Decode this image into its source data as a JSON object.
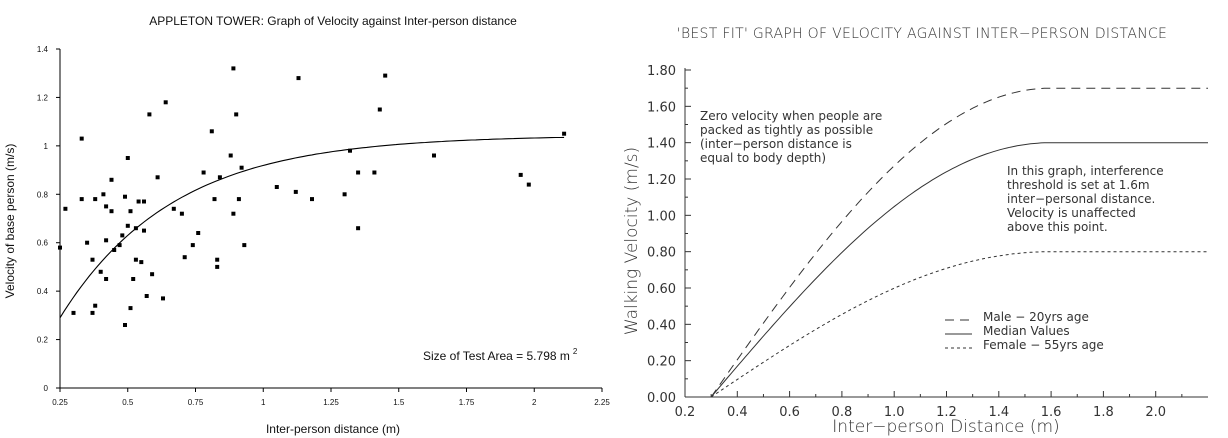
{
  "chart_data": [
    {
      "type": "scatter",
      "title": "APPLETON TOWER: Graph of Velocity against Inter-person distance",
      "xlabel": "Inter-person distance (m)",
      "ylabel": "Velocity of base person (m/s)",
      "xlim": [
        0.25,
        2.25
      ],
      "ylim": [
        0,
        1.4
      ],
      "xticks": [
        "0.25",
        "0.5",
        "0.75",
        "1",
        "1.25",
        "1.5",
        "1.75",
        "2",
        "2.25"
      ],
      "yticks": [
        "0",
        "0.2",
        "0.4",
        "0.6",
        "0.8",
        "1",
        "1.2",
        "1.4"
      ],
      "annotation": "Size of Test Area = 5.798 m",
      "annotation_sup": "2",
      "grid": false,
      "points": [
        [
          0.25,
          0.58
        ],
        [
          0.27,
          0.74
        ],
        [
          0.3,
          0.31
        ],
        [
          0.33,
          0.78
        ],
        [
          0.33,
          1.03
        ],
        [
          0.35,
          0.6
        ],
        [
          0.37,
          0.53
        ],
        [
          0.37,
          0.31
        ],
        [
          0.38,
          0.34
        ],
        [
          0.38,
          0.78
        ],
        [
          0.4,
          0.48
        ],
        [
          0.41,
          0.8
        ],
        [
          0.42,
          0.75
        ],
        [
          0.42,
          0.61
        ],
        [
          0.42,
          0.45
        ],
        [
          0.44,
          0.86
        ],
        [
          0.44,
          0.73
        ],
        [
          0.45,
          0.57
        ],
        [
          0.47,
          0.59
        ],
        [
          0.48,
          0.63
        ],
        [
          0.49,
          0.26
        ],
        [
          0.49,
          0.79
        ],
        [
          0.5,
          0.95
        ],
        [
          0.5,
          0.67
        ],
        [
          0.51,
          0.73
        ],
        [
          0.51,
          0.33
        ],
        [
          0.52,
          0.45
        ],
        [
          0.53,
          0.53
        ],
        [
          0.53,
          0.66
        ],
        [
          0.54,
          0.77
        ],
        [
          0.55,
          0.52
        ],
        [
          0.56,
          0.65
        ],
        [
          0.56,
          0.77
        ],
        [
          0.57,
          0.38
        ],
        [
          0.58,
          1.13
        ],
        [
          0.59,
          0.47
        ],
        [
          0.61,
          0.87
        ],
        [
          0.63,
          0.37
        ],
        [
          0.64,
          1.18
        ],
        [
          0.67,
          0.74
        ],
        [
          0.7,
          0.72
        ],
        [
          0.71,
          0.54
        ],
        [
          0.74,
          0.59
        ],
        [
          0.76,
          0.64
        ],
        [
          0.78,
          0.89
        ],
        [
          0.81,
          1.06
        ],
        [
          0.82,
          0.78
        ],
        [
          0.83,
          0.53
        ],
        [
          0.83,
          0.5
        ],
        [
          0.84,
          0.87
        ],
        [
          0.88,
          0.96
        ],
        [
          0.89,
          1.32
        ],
        [
          0.89,
          0.72
        ],
        [
          0.9,
          1.13
        ],
        [
          0.91,
          0.78
        ],
        [
          0.92,
          0.91
        ],
        [
          0.93,
          0.59
        ],
        [
          1.05,
          0.83
        ],
        [
          1.12,
          0.81
        ],
        [
          1.13,
          1.28
        ],
        [
          1.18,
          0.78
        ],
        [
          1.3,
          0.8
        ],
        [
          1.32,
          0.98
        ],
        [
          1.35,
          0.89
        ],
        [
          1.35,
          0.66
        ],
        [
          1.41,
          0.89
        ],
        [
          1.43,
          1.15
        ],
        [
          1.45,
          1.29
        ],
        [
          1.63,
          0.96
        ],
        [
          1.95,
          0.88
        ],
        [
          1.98,
          0.84
        ],
        [
          2.11,
          1.05
        ]
      ],
      "fit_curve": {
        "x_start": 0.25,
        "x_end": 2.11,
        "y_start": 0.29,
        "y_end": 1.035
      }
    },
    {
      "type": "line",
      "title": "'BEST FIT' GRAPH OF VELOCITY AGAINST INTER−PERSON DISTANCE",
      "xlabel": "Inter−person Distance (m)",
      "ylabel": "Walking Velocity (m/s)",
      "xlim": [
        0.2,
        2.2
      ],
      "ylim": [
        0,
        1.8
      ],
      "xticks": [
        "0.2",
        "0.4",
        "0.6",
        "0.8",
        "1.0",
        "1.2",
        "1.4",
        "1.6",
        "1.8",
        "2.0"
      ],
      "yticks": [
        "0.00",
        "0.20",
        "0.40",
        "0.60",
        "0.80",
        "1.00",
        "1.20",
        "1.40",
        "1.60",
        "1.80"
      ],
      "x_start": 0.3,
      "plateau_x": 1.6,
      "x_end": 2.2,
      "series": [
        {
          "name": "Male - 20yrs age",
          "style": "dash-long",
          "plateau": 1.7
        },
        {
          "name": "Median Values",
          "style": "solid",
          "plateau": 1.4
        },
        {
          "name": "Female - 55yrs age",
          "style": "dash-short",
          "plateau": 0.8
        }
      ],
      "legend": {
        "placement": "lower-right",
        "entries": [
          "Male  −  20yrs age",
          "Median Values",
          "Female  −  55yrs age"
        ]
      },
      "annotations": {
        "note1": [
          "Zero velocity when people are",
          "packed as tightly as possible",
          "(inter−person distance is",
          "equal to body depth)"
        ],
        "note2": [
          "In this graph, interference",
          "threshold is set at 1.6m",
          "inter−personal distance.",
          "Velocity is unaffected",
          "above this point."
        ]
      }
    }
  ]
}
